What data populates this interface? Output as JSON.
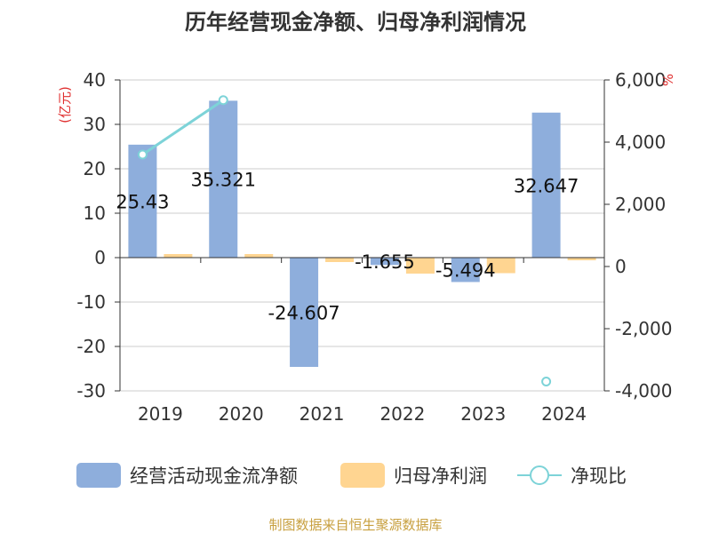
{
  "chart_data": {
    "type": "bar",
    "title": "历年经营现金净额、归母净利润情况",
    "categories": [
      "2019",
      "2020",
      "2021",
      "2022",
      "2023",
      "2024"
    ],
    "left_axis": {
      "unit": "(亿元)",
      "ylim": [
        -30,
        40
      ],
      "ticks": [
        "40",
        "30",
        "20",
        "10",
        "0",
        "-10",
        "-20",
        "-30"
      ]
    },
    "right_axis": {
      "unit": "%",
      "ylim": [
        -4000,
        6000
      ],
      "ticks": [
        "6,000",
        "4,000",
        "2,000",
        "0",
        "-2,000",
        "-4,000"
      ]
    },
    "series": [
      {
        "name": "经营活动现金流净额",
        "type": "bar",
        "axis": "left",
        "values": [
          25.43,
          35.321,
          -24.607,
          -1.655,
          -5.494,
          32.647
        ],
        "labels": [
          "25.43",
          "35.321",
          "-24.607",
          "-1.655",
          "-5.494",
          "32.647"
        ]
      },
      {
        "name": "归母净利润",
        "type": "bar",
        "axis": "left",
        "values": [
          0.8,
          0.8,
          -1.0,
          -3.6,
          -3.5,
          -0.6
        ]
      },
      {
        "name": "净现比",
        "type": "line",
        "axis": "right",
        "values": [
          3600,
          5350,
          null,
          null,
          null,
          -3700
        ]
      }
    ]
  },
  "legend": {
    "items": [
      "经营活动现金流净额",
      "归母净利润",
      "净现比"
    ]
  },
  "colors": {
    "cash_flow": "#8eaedc",
    "net_profit": "#ffd591",
    "ratio": "#7dd3d8",
    "unit": "#e03030",
    "source": "#c8a040"
  },
  "source": "制图数据来自恒生聚源数据库"
}
